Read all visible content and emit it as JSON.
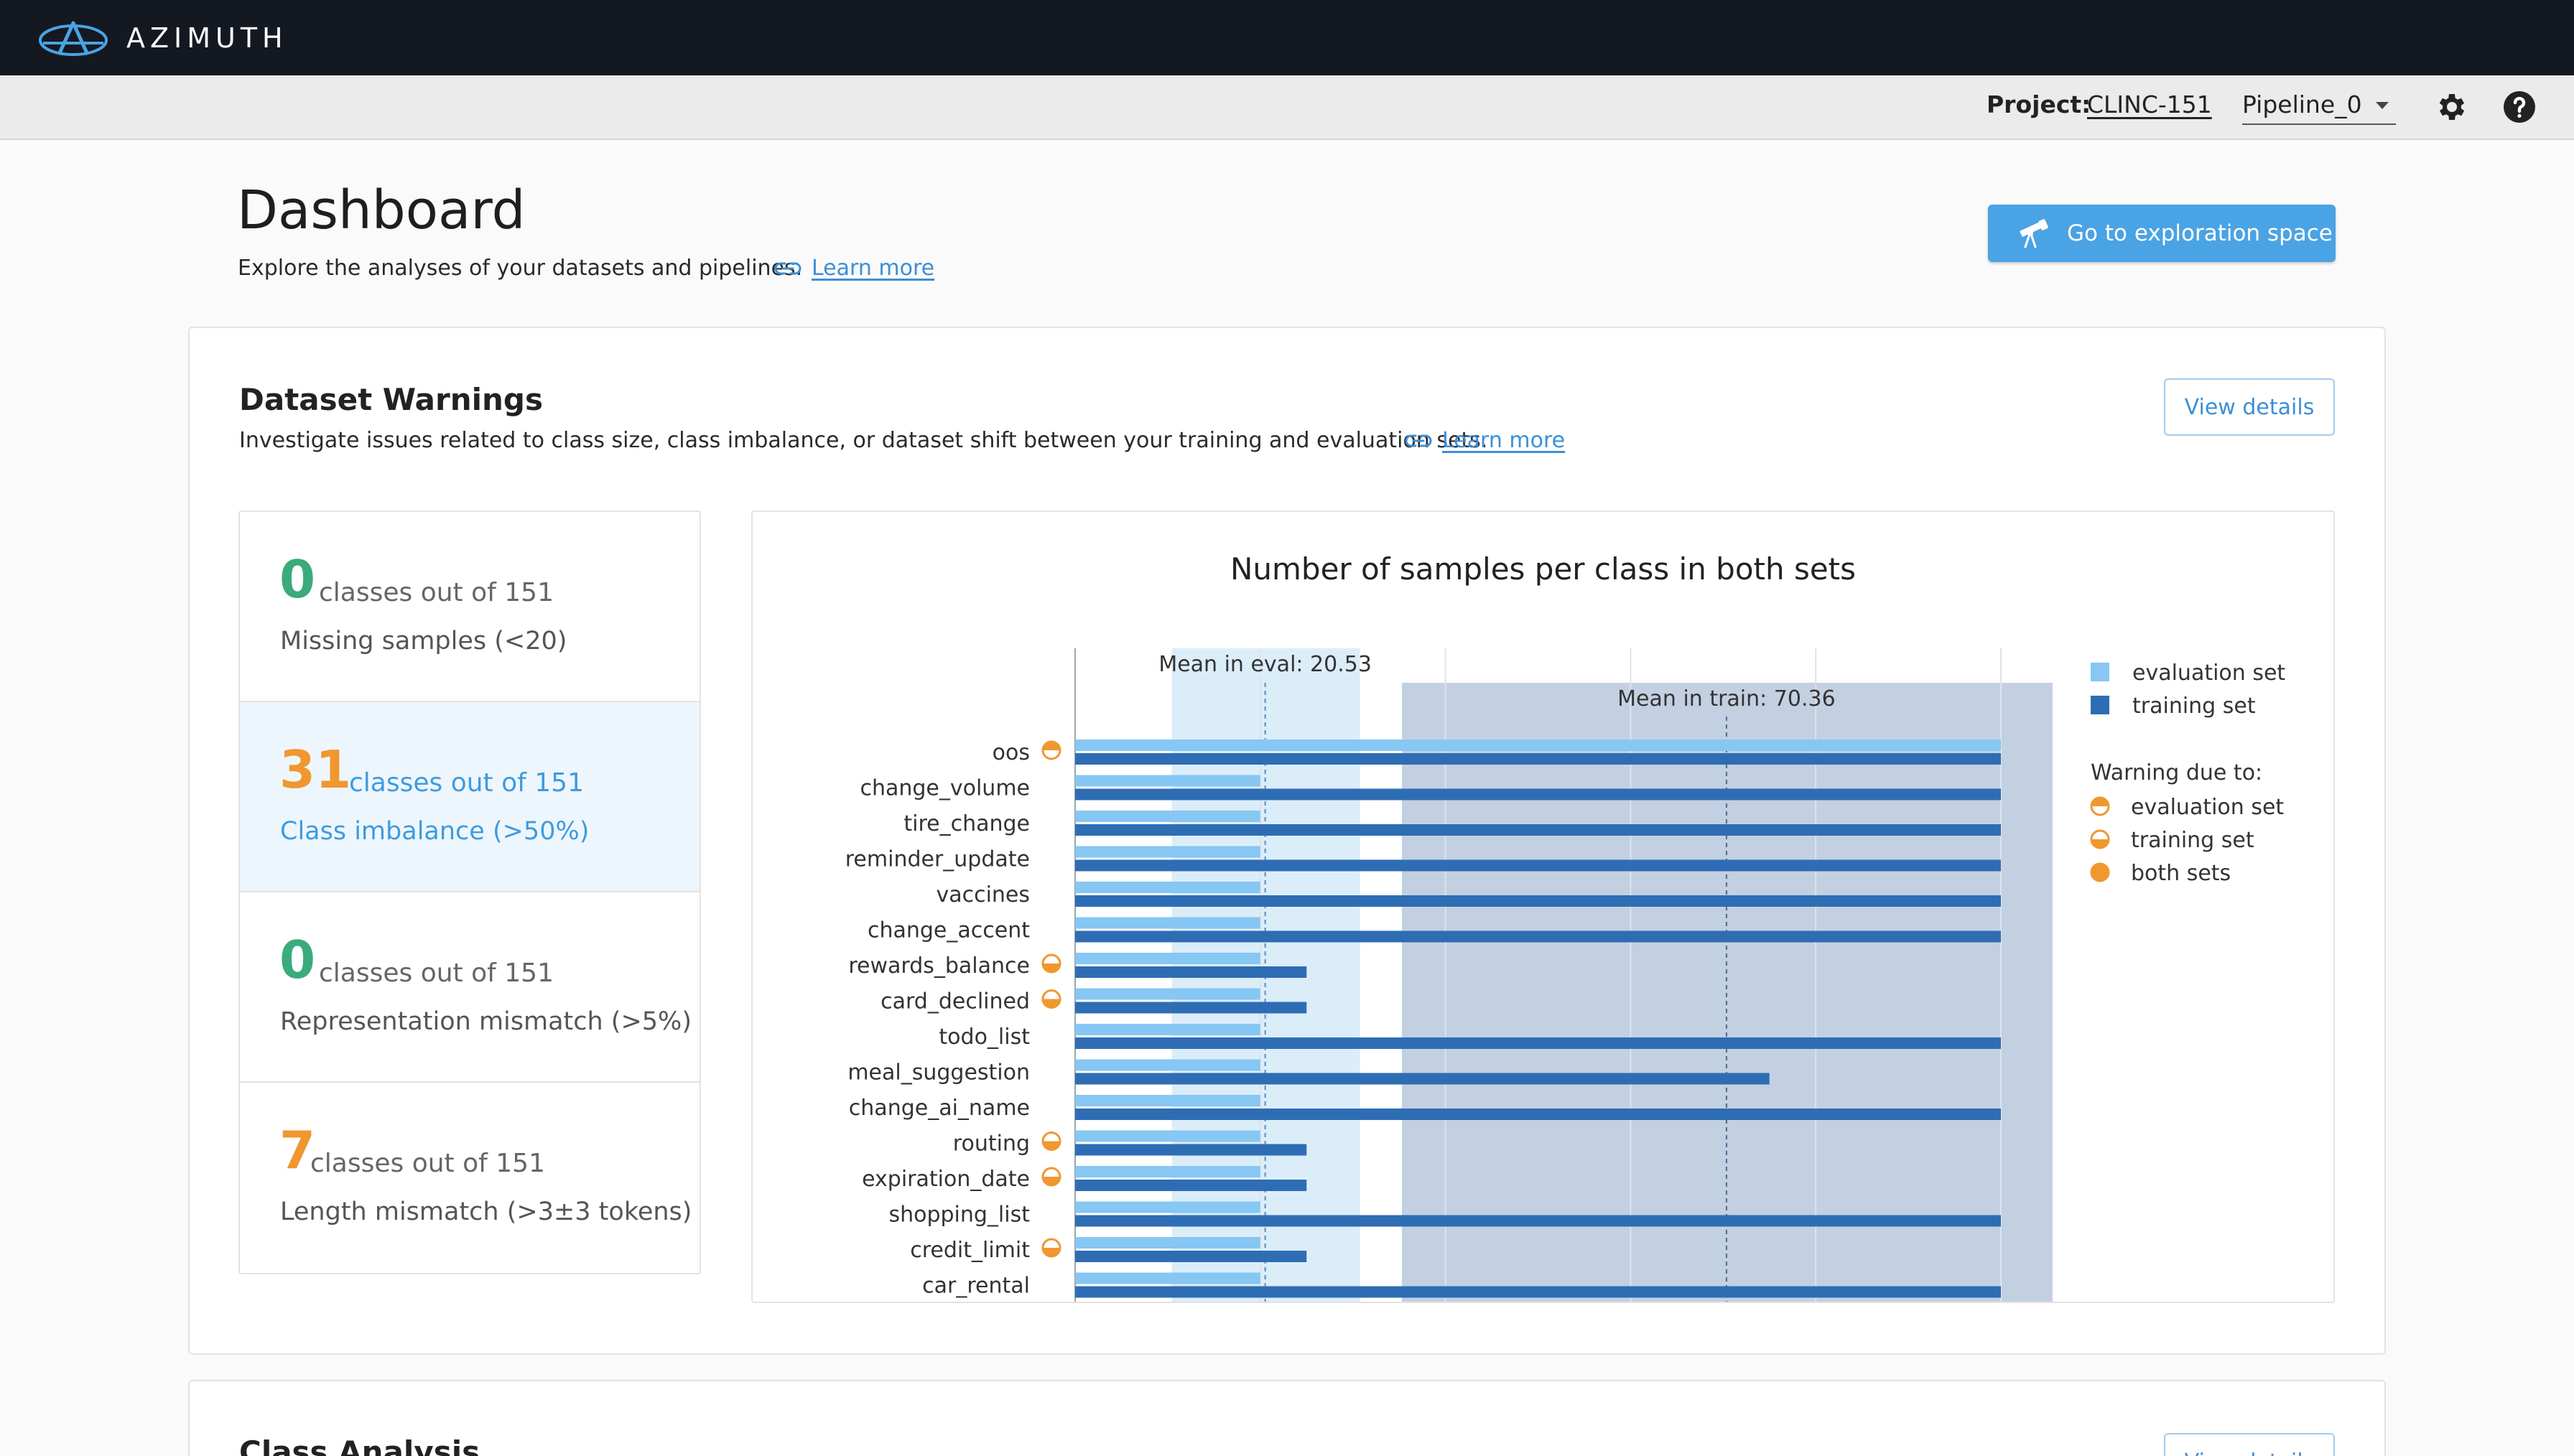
{
  "header": {
    "brand": "AZIMUTH",
    "project_label": "Project:",
    "project_name": "CLINC-151",
    "pipeline": "Pipeline_0"
  },
  "page": {
    "title": "Dashboard",
    "subtitle": "Explore the analyses of your datasets and pipelines.",
    "learn_more": "Learn more",
    "explore_button": "Go to exploration space"
  },
  "dataset_warnings": {
    "title": "Dataset Warnings",
    "description": "Investigate issues related to class size, class imbalance, or dataset shift between your training and evaluation sets.",
    "learn_more": "Learn more",
    "view_details": "View details",
    "items": [
      {
        "count": "0",
        "of_text": "classes out of 151",
        "label": "Missing samples (<20)",
        "color": "#3aab7b",
        "active": false
      },
      {
        "count": "31",
        "of_text": "classes out of 151",
        "label": "Class imbalance (>50%)",
        "color": "#f0972f",
        "active": true
      },
      {
        "count": "0",
        "of_text": "classes out of 151",
        "label": "Representation mismatch (>5%)",
        "color": "#3aab7b",
        "active": false
      },
      {
        "count": "7",
        "of_text": "classes out of 151",
        "label": "Length mismatch (>3±3 tokens)",
        "color": "#f0972f",
        "active": false
      }
    ]
  },
  "class_analysis": {
    "title": "Class Analysis",
    "view_details": "View details"
  },
  "colors": {
    "eval": "#86c7f3",
    "train": "#2e6db4",
    "warning": "#f0972f",
    "accent": "#4aa3e4"
  },
  "chart_data": {
    "type": "bar",
    "title": "Number of samples per class in both sets",
    "orientation": "horizontal",
    "categories": [
      "oos",
      "change_volume",
      "tire_change",
      "reminder_update",
      "vaccines",
      "change_accent",
      "rewards_balance",
      "card_declined",
      "todo_list",
      "meal_suggestion",
      "change_ai_name",
      "routing",
      "expiration_date",
      "shopping_list",
      "credit_limit",
      "car_rental"
    ],
    "series": [
      {
        "name": "evaluation set",
        "values": [
          100,
          20,
          20,
          20,
          20,
          20,
          20,
          20,
          20,
          20,
          20,
          20,
          20,
          20,
          20,
          20
        ]
      },
      {
        "name": "training set",
        "values": [
          100,
          100,
          100,
          100,
          100,
          100,
          25,
          25,
          100,
          75,
          100,
          25,
          25,
          100,
          25,
          100
        ]
      }
    ],
    "warnings": [
      "evaluation set",
      "",
      "",
      "",
      "",
      "",
      "training set",
      "training set",
      "",
      "",
      "",
      "training set",
      "training set",
      "",
      "training set",
      ""
    ],
    "mean_eval": 20.53,
    "mean_train": 70.36,
    "mean_eval_label": "Mean in eval: 20.53",
    "mean_train_label": "Mean in train: 70.36",
    "xlim": [
      0,
      100
    ],
    "legend": {
      "series": [
        "evaluation set",
        "training set"
      ],
      "warning_title": "Warning due to:",
      "warning_items": [
        "evaluation set",
        "training set",
        "both sets"
      ]
    }
  }
}
